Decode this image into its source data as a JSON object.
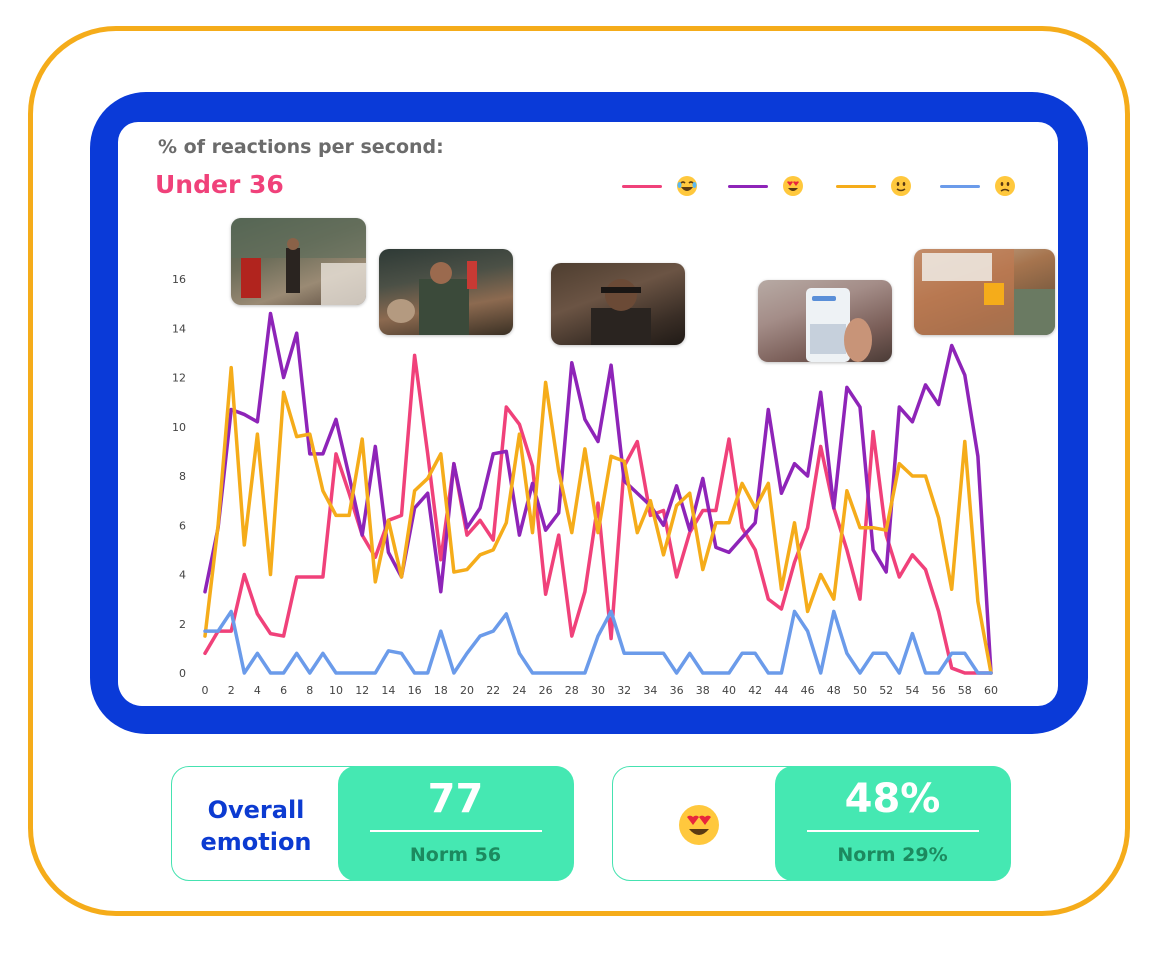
{
  "header": {
    "subtitle": "% of reactions per second:",
    "segment": "Under 36"
  },
  "colors": {
    "frame_outer": "#f5ac1a",
    "frame_inner": "#0a3ad8",
    "accent_green": "#45e8b2",
    "segment_pink": "#f0417a"
  },
  "legend": [
    {
      "icon": "tears-of-joy-emoji-icon",
      "color": "#f0417a"
    },
    {
      "icon": "heart-eyes-emoji-icon",
      "color": "#8e24b8"
    },
    {
      "icon": "slightly-smiling-emoji-icon",
      "color": "#f5ac1a"
    },
    {
      "icon": "frowning-emoji-icon",
      "color": "#6b9bea"
    }
  ],
  "chart_data": {
    "type": "line",
    "x": [
      0,
      1,
      2,
      3,
      4,
      5,
      6,
      7,
      8,
      9,
      10,
      11,
      12,
      13,
      14,
      15,
      16,
      17,
      18,
      19,
      20,
      21,
      22,
      23,
      24,
      25,
      26,
      27,
      28,
      29,
      30,
      31,
      32,
      33,
      34,
      35,
      36,
      37,
      38,
      39,
      40,
      41,
      42,
      43,
      44,
      45,
      46,
      47,
      48,
      49,
      50,
      51,
      52,
      53,
      54,
      55,
      56,
      57,
      58,
      59,
      60
    ],
    "x_ticks": [
      0,
      2,
      4,
      6,
      8,
      10,
      12,
      14,
      16,
      18,
      20,
      22,
      24,
      26,
      28,
      30,
      32,
      34,
      36,
      38,
      40,
      42,
      44,
      46,
      48,
      50,
      52,
      54,
      56,
      58,
      60
    ],
    "y_ticks": [
      0,
      2,
      4,
      6,
      8,
      10,
      12,
      14,
      16
    ],
    "ylim": [
      0,
      16
    ],
    "xlim": [
      0,
      60
    ],
    "grid": false,
    "legend_position": "top-right",
    "series": [
      {
        "color": "#f0417a",
        "values": [
          0.8,
          1.7,
          1.7,
          4.0,
          2.4,
          1.6,
          1.5,
          3.9,
          3.9,
          3.9,
          8.9,
          7.3,
          5.6,
          4.7,
          6.2,
          6.4,
          12.9,
          8.9,
          4.6,
          8.5,
          5.6,
          6.2,
          5.4,
          10.8,
          10.1,
          8.4,
          3.2,
          5.6,
          1.5,
          3.3,
          6.9,
          1.4,
          8.4,
          9.4,
          6.4,
          6.6,
          3.9,
          5.7,
          6.6,
          6.6,
          9.5,
          5.9,
          5.0,
          3.0,
          2.6,
          4.5,
          5.9,
          9.2,
          6.7,
          5.0,
          3.0,
          9.8,
          5.6,
          3.9,
          4.8,
          4.2,
          2.5,
          0.2,
          0.0,
          0.0,
          0.0
        ]
      },
      {
        "color": "#8e24b8",
        "values": [
          3.3,
          5.9,
          10.7,
          10.5,
          10.2,
          14.6,
          12.0,
          13.8,
          8.9,
          8.9,
          10.3,
          8.0,
          5.6,
          9.2,
          4.9,
          3.9,
          6.7,
          7.3,
          3.3,
          8.5,
          5.9,
          6.7,
          8.9,
          9.0,
          5.6,
          7.7,
          5.8,
          6.5,
          12.6,
          10.3,
          9.4,
          12.5,
          7.8,
          7.3,
          6.8,
          6.0,
          7.6,
          5.8,
          7.9,
          5.1,
          4.9,
          5.5,
          6.1,
          10.7,
          7.3,
          8.5,
          8.0,
          11.4,
          6.7,
          11.6,
          10.8,
          5.0,
          4.1,
          10.8,
          10.2,
          11.7,
          10.9,
          13.3,
          12.1,
          8.8,
          0.0
        ]
      },
      {
        "color": "#f5ac1a",
        "values": [
          1.5,
          6.0,
          12.4,
          5.2,
          9.7,
          4.0,
          11.4,
          9.6,
          9.7,
          7.4,
          6.4,
          6.4,
          9.5,
          3.7,
          6.2,
          3.9,
          7.4,
          7.9,
          8.9,
          4.1,
          4.2,
          4.8,
          5.0,
          6.1,
          9.7,
          5.7,
          11.8,
          8.2,
          5.7,
          9.1,
          5.7,
          8.8,
          8.6,
          5.7,
          7.0,
          4.8,
          6.8,
          7.3,
          4.2,
          6.1,
          6.1,
          7.7,
          6.7,
          7.7,
          3.4,
          6.1,
          2.5,
          4.0,
          3.0,
          7.4,
          5.9,
          5.9,
          5.8,
          8.5,
          8.0,
          8.0,
          6.3,
          3.4,
          9.4,
          2.9,
          0.0
        ]
      },
      {
        "color": "#6b9bea",
        "values": [
          1.7,
          1.7,
          2.5,
          0.0,
          0.8,
          0.0,
          0.0,
          0.8,
          0.0,
          0.8,
          0.0,
          0.0,
          0.0,
          0.0,
          0.9,
          0.8,
          0.0,
          0.0,
          1.7,
          0.0,
          0.8,
          1.5,
          1.7,
          2.4,
          0.8,
          0.0,
          0.0,
          0.0,
          0.0,
          0.0,
          1.5,
          2.5,
          0.8,
          0.8,
          0.8,
          0.8,
          0.0,
          0.8,
          0.0,
          0.0,
          0.0,
          0.8,
          0.8,
          0.0,
          0.0,
          2.5,
          1.7,
          0.0,
          2.5,
          0.8,
          0.0,
          0.8,
          0.8,
          0.0,
          1.6,
          0.0,
          0.0,
          0.8,
          0.8,
          0.0,
          0.0
        ]
      }
    ]
  },
  "stats": [
    {
      "label_line1": "Overall",
      "label_line2": "emotion",
      "value": "77",
      "norm": "Norm 56"
    },
    {
      "icon": "heart-eyes-emoji-icon",
      "value": "48%",
      "norm": "Norm 29%"
    }
  ]
}
